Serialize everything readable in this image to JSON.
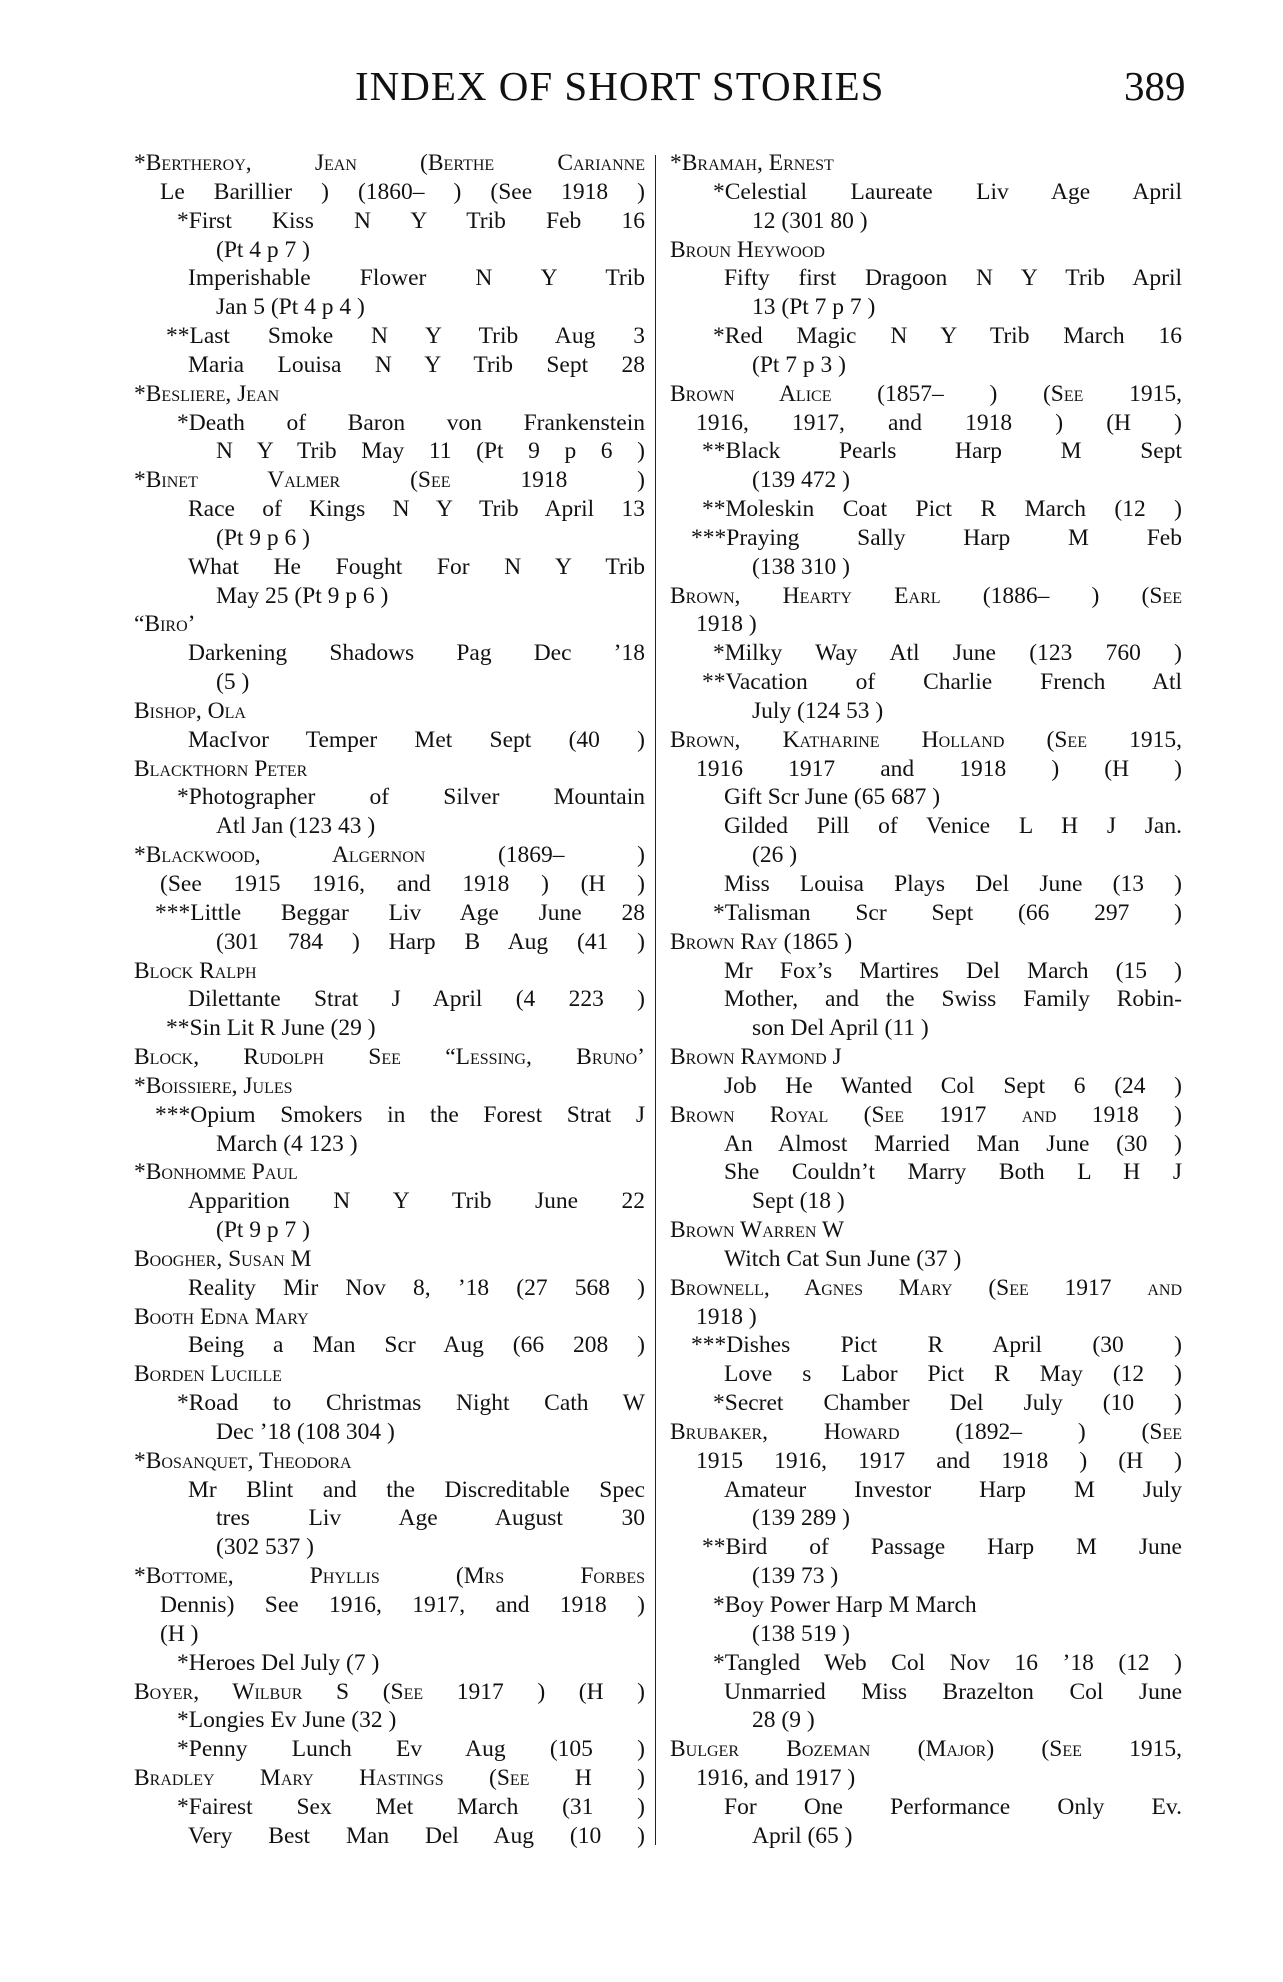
{
  "header": {
    "title": "INDEX OF SHORT STORIES",
    "page_number": "389"
  },
  "left_column": [
    "*Bertheroy, Jean (Berthe Carianne",
    "Le Barillier ) (1860– ) (See 1918 )",
    "*First Kiss N Y Trib Feb 16",
    "(Pt 4 p 7 )",
    "Imperishable Flower N Y Trib",
    "Jan 5 (Pt 4 p 4 )",
    "**Last Smoke N Y Trib Aug 3",
    "Maria Louisa N Y Trib Sept 28",
    "*Besliere, Jean",
    "*Death of Baron von Frankenstein",
    "N Y Trib May 11 (Pt 9 p 6 )",
    "*Binet Valmer (See 1918 )",
    "Race of Kings N Y Trib April 13",
    "(Pt 9 p 6 )",
    "What He Fought For N Y Trib",
    "May 25 (Pt 9 p 6 )",
    "“Biro’",
    "Darkening Shadows Pag Dec ’18",
    "(5 )",
    "Bishop, Ola",
    "MacIvor Temper Met Sept (40 )",
    "Blackthorn Peter",
    "*Photographer of Silver Mountain",
    "Atl Jan (123 43 )",
    "*Blackwood, Algernon (1869– )",
    "(See 1915 1916, and 1918 ) (H )",
    "***Little Beggar Liv Age June 28",
    "(301 784 ) Harp B Aug (41 )",
    "Block Ralph",
    "Dilettante Strat J April (4 223 )",
    "**Sin Lit R June (29 )",
    "Block, Rudolph See “Lessing, Bruno’",
    "*Boissiere, Jules",
    "***Opium Smokers in the Forest Strat J",
    "March (4 123 )",
    "*Bonhomme Paul",
    "Apparition N Y Trib June 22",
    "(Pt 9 p 7 )",
    "Boogher, Susan M",
    "Reality Mir Nov 8, ’18 (27 568 )",
    "Booth Edna Mary",
    "Being a Man Scr Aug (66 208 )",
    "Borden Lucille",
    "*Road to Christmas Night Cath W",
    "Dec ’18 (108 304 )",
    "*Bosanquet, Theodora",
    "Mr Blint and the Discreditable Spec",
    "tres Liv Age August 30",
    "(302 537 )",
    "*Bottome, Phyllis (Mrs Forbes",
    "Dennis) See 1916, 1917, and 1918 )",
    "(H )",
    "*Heroes Del July (7 )",
    "Boyer, Wilbur S (See 1917 ) (H )",
    "*Longies Ev June (32 )",
    "*Penny Lunch Ev Aug (105 )",
    "Bradley Mary Hastings (See H )",
    "*Fairest Sex Met March (31 )",
    "Very Best Man Del Aug (10 )"
  ],
  "right_column": [
    "*Bramah, Ernest",
    "*Celestial Laureate Liv Age April",
    "12 (301 80 )",
    "Broun Heywood",
    "Fifty first Dragoon N Y Trib April",
    "13 (Pt 7 p 7 )",
    "*Red Magic N Y Trib March 16",
    "(Pt 7 p 3 )",
    "Brown Alice (1857– ) (See 1915,",
    "1916, 1917, and 1918 ) (H )",
    "**Black Pearls Harp M Sept",
    "(139 472 )",
    "**Moleskin Coat Pict R March (12 )",
    "***Praying Sally Harp M Feb",
    "(138 310 )",
    "Brown, Hearty Earl (1886– ) (See",
    "1918 )",
    "*Milky Way Atl June (123 760 )",
    "**Vacation of Charlie French Atl",
    "July (124 53 )",
    "Brown, Katharine Holland (See 1915,",
    "1916 1917 and 1918 ) (H )",
    "Gift Scr June (65 687 )",
    "Gilded Pill of Venice L H J Jan.",
    "(26 )",
    "Miss Louisa Plays Del June (13 )",
    "*Talisman Scr Sept (66 297 )",
    "Brown Ray (1865 )",
    "Mr Fox’s Martires Del March (15 )",
    "Mother, and the Swiss Family Robin-",
    "son Del April (11 )",
    "Brown Raymond J",
    "Job He Wanted Col Sept 6 (24 )",
    "Brown Royal (See 1917 and 1918 )",
    "An Almost Married Man June (30 )",
    "She Couldn’t Marry Both L H J",
    "Sept (18 )",
    "Brown Warren W",
    "Witch Cat Sun June (37 )",
    "Brownell, Agnes Mary (See 1917 and",
    "1918 )",
    "***Dishes Pict R April (30 )",
    "Love s Labor Pict R May (12 )",
    "*Secret Chamber Del July (10 )",
    "Brubaker, Howard (1892– ) (See",
    "1915 1916, 1917 and 1918 ) (H )",
    "Amateur Investor Harp M July",
    "(139 289 )",
    "**Bird of Passage Harp M June",
    "(139 73 )",
    "*Boy Power Harp M March",
    "(138 519 )",
    "*Tangled Web Col Nov 16 ’18 (12 )",
    "Unmarried Miss Brazelton Col June",
    "28 (9 )",
    "Bulger Bozeman (Major) (See 1915,",
    "1916, and 1917 )",
    "For One Performance Only Ev.",
    "April (65 )"
  ]
}
